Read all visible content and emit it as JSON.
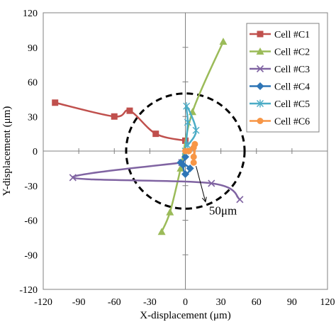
{
  "chart_data": {
    "type": "scatter",
    "title": "",
    "xlabel": "X-displacement (μm)",
    "ylabel": "Y-displacement (μm)",
    "xlim": [
      -120,
      120
    ],
    "ylim": [
      -120,
      120
    ],
    "xticks": [
      -120,
      -90,
      -60,
      -30,
      0,
      30,
      60,
      90,
      120
    ],
    "yticks": [
      -120,
      -90,
      -60,
      -30,
      0,
      30,
      60,
      90,
      120
    ],
    "xtick_labels": [
      "-120",
      "-90",
      "-60",
      "-30",
      "0",
      "30",
      "60",
      "90",
      "120"
    ],
    "ytick_labels": [
      "-120",
      "-90",
      "-60",
      "-30",
      "0",
      "30",
      "60",
      "90",
      "120"
    ],
    "grid": false,
    "legend_position": "top-right",
    "circle": {
      "center": [
        0,
        0
      ],
      "radius": 50,
      "style": "dashed"
    },
    "annotation": {
      "text": "50μm"
    },
    "series": [
      {
        "name": "Cell #C1",
        "color": "#C0504D",
        "marker": "square",
        "points": [
          [
            0,
            9
          ],
          [
            -25,
            15
          ],
          [
            -47,
            35
          ],
          [
            -60,
            30
          ],
          [
            -110,
            42
          ]
        ]
      },
      {
        "name": "Cell #C2",
        "color": "#9BBB59",
        "marker": "triangle",
        "points": [
          [
            32,
            95
          ],
          [
            6,
            34
          ],
          [
            -4,
            -15
          ],
          [
            -13,
            -53
          ],
          [
            -20,
            -70
          ]
        ]
      },
      {
        "name": "Cell #C3",
        "color": "#8064A2",
        "marker": "x",
        "points": [
          [
            -3,
            -10
          ],
          [
            -95,
            -23
          ],
          [
            22,
            -28
          ],
          [
            46,
            -42
          ]
        ]
      },
      {
        "name": "Cell #C4",
        "color": "#2E75B6",
        "marker": "diamond",
        "points": [
          [
            0,
            -5
          ],
          [
            -2,
            -12
          ],
          [
            0,
            -20
          ],
          [
            4,
            -15
          ],
          [
            -4,
            -10
          ]
        ]
      },
      {
        "name": "Cell #C5",
        "color": "#4BACC6",
        "marker": "star",
        "points": [
          [
            0,
            0
          ],
          [
            2,
            25
          ],
          [
            1,
            39
          ],
          [
            9,
            18
          ],
          [
            2,
            5
          ]
        ]
      },
      {
        "name": "Cell #C6",
        "color": "#F79646",
        "marker": "circle",
        "points": [
          [
            0,
            0
          ],
          [
            7,
            3
          ],
          [
            7,
            -5
          ],
          [
            7,
            -10
          ],
          [
            8,
            6
          ],
          [
            3,
            0
          ]
        ]
      }
    ]
  }
}
